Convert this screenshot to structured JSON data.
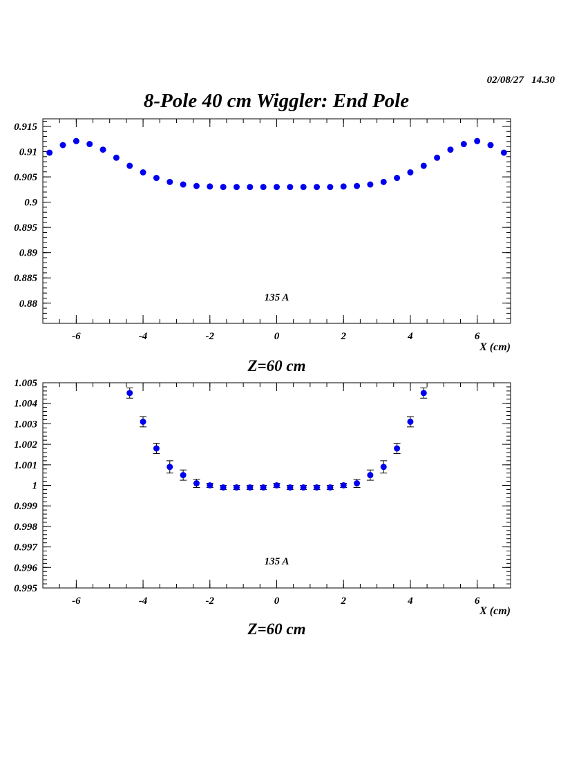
{
  "page": {
    "timestamp": "02/08/27   14.30",
    "title": "8-Pole 40 cm Wiggler: End Pole"
  },
  "chart_data": [
    {
      "type": "scatter",
      "annotation": "135 A",
      "subtitle": "Z=60 cm",
      "xlabel": "X (cm)",
      "ylabel": "",
      "xlim": [
        -7,
        7
      ],
      "ylim": [
        0.876,
        0.9165
      ],
      "x_ticks": [
        -6,
        -4,
        -2,
        0,
        2,
        4,
        6
      ],
      "x_tick_labels": [
        "-6",
        "-4",
        "-2",
        "0",
        "2",
        "4",
        "6"
      ],
      "y_ticks": [
        0.88,
        0.885,
        0.89,
        0.895,
        0.9,
        0.905,
        0.91,
        0.915
      ],
      "y_tick_labels": [
        "0.88",
        "0.885",
        "0.89",
        "0.895",
        "0.9",
        "0.905",
        "0.91",
        "0.915"
      ],
      "marker_color": "#0000ee",
      "series": [
        {
          "x": [
            -6.8,
            -6.4,
            -6.0,
            -5.6,
            -5.2,
            -4.8,
            -4.4,
            -4.0,
            -3.6,
            -3.2,
            -2.8,
            -2.4,
            -2.0,
            -1.6,
            -1.2,
            -0.8,
            -0.4,
            0.0,
            0.4,
            0.8,
            1.2,
            1.6,
            2.0,
            2.4,
            2.8,
            3.2,
            3.6,
            4.0,
            4.4,
            4.8,
            5.2,
            5.6,
            6.0,
            6.4,
            6.8
          ],
          "y": [
            0.9098,
            0.9113,
            0.9121,
            0.9115,
            0.9104,
            0.9088,
            0.9072,
            0.9059,
            0.9048,
            0.904,
            0.9035,
            0.9032,
            0.9031,
            0.903,
            0.903,
            0.903,
            0.903,
            0.903,
            0.903,
            0.903,
            0.903,
            0.903,
            0.9031,
            0.9032,
            0.9035,
            0.904,
            0.9048,
            0.9059,
            0.9072,
            0.9088,
            0.9104,
            0.9115,
            0.9121,
            0.9113,
            0.9098
          ],
          "err": [
            0.0002,
            0.0002,
            0.0002,
            0.0002,
            0.0002,
            0.0002,
            0.0002,
            0.0002,
            0.0002,
            0.0002,
            0.0002,
            0.0002,
            0.0002,
            0.0002,
            0.0002,
            0.0002,
            0.0002,
            0.0002,
            0.0002,
            0.0002,
            0.0002,
            0.0002,
            0.0002,
            0.0002,
            0.0002,
            0.0002,
            0.0002,
            0.0002,
            0.0002,
            0.0002,
            0.0002,
            0.0002,
            0.0002,
            0.0002,
            0.0002
          ]
        }
      ]
    },
    {
      "type": "scatter",
      "annotation": "135 A",
      "subtitle": "Z=60 cm",
      "xlabel": "X (cm)",
      "ylabel": "",
      "xlim": [
        -7,
        7
      ],
      "ylim": [
        0.995,
        1.005
      ],
      "x_ticks": [
        -6,
        -4,
        -2,
        0,
        2,
        4,
        6
      ],
      "x_tick_labels": [
        "-6",
        "-4",
        "-2",
        "0",
        "2",
        "4",
        "6"
      ],
      "y_ticks": [
        0.995,
        0.996,
        0.997,
        0.998,
        0.999,
        1.0,
        1.001,
        1.002,
        1.003,
        1.004,
        1.005
      ],
      "y_tick_labels": [
        "0.995",
        "0.996",
        "0.997",
        "0.998",
        "0.999",
        "1",
        "1.001",
        "1.002",
        "1.003",
        "1.004",
        "1.005"
      ],
      "marker_color": "#0000ee",
      "series": [
        {
          "x": [
            -4.4,
            -4.0,
            -3.6,
            -3.2,
            -2.8,
            -2.4,
            -2.0,
            -1.6,
            -1.2,
            -0.8,
            -0.4,
            0.0,
            0.4,
            0.8,
            1.2,
            1.6,
            2.0,
            2.4,
            2.8,
            3.2,
            3.6,
            4.0,
            4.4
          ],
          "y": [
            1.0045,
            1.0031,
            1.0018,
            1.0009,
            1.0005,
            1.0001,
            1.0,
            0.9999,
            0.9999,
            0.9999,
            0.9999,
            1.0,
            0.9999,
            0.9999,
            0.9999,
            0.9999,
            1.0,
            1.0001,
            1.0005,
            1.0009,
            1.0018,
            1.0031,
            1.0045
          ],
          "err": [
            0.00025,
            0.00025,
            0.00025,
            0.0003,
            0.00025,
            0.0002,
            0.0001,
            0.0001,
            0.0001,
            0.0001,
            0.0001,
            0.0001,
            0.0001,
            0.0001,
            0.0001,
            0.0001,
            0.0001,
            0.0002,
            0.00025,
            0.0003,
            0.00025,
            0.00025,
            0.00025
          ]
        }
      ]
    }
  ]
}
